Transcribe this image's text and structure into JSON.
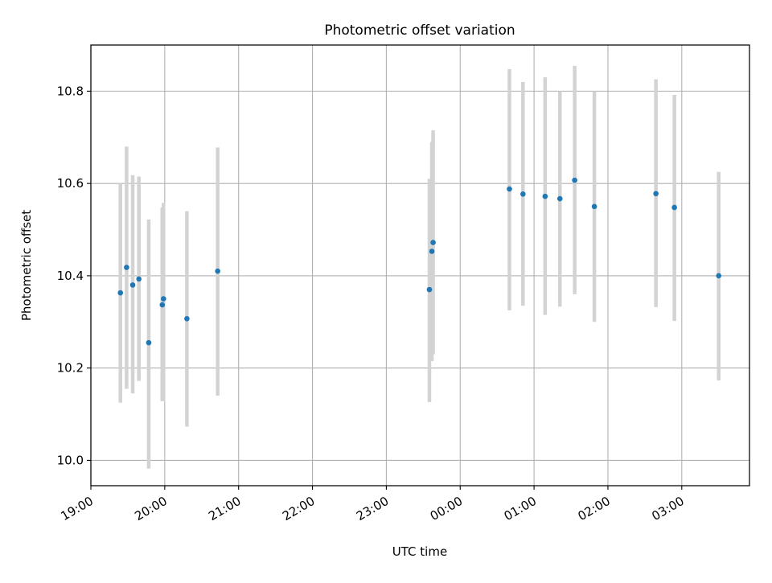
{
  "chart_data": {
    "type": "scatter",
    "title": "Photometric offset variation",
    "xlabel": "UTC time",
    "ylabel": "Photometric offset",
    "x_unit": "UTC time, evening 19:00 through early morning 03:45 of the next day",
    "xlim": [
      "19:00",
      "03:55"
    ],
    "ylim": [
      9.945,
      10.9
    ],
    "xticks": [
      "19:00",
      "20:00",
      "21:00",
      "22:00",
      "23:00",
      "00:00",
      "01:00",
      "02:00",
      "03:00"
    ],
    "yticks": [
      "10.0",
      "10.2",
      "10.4",
      "10.6",
      "10.8"
    ],
    "grid": true,
    "legend": "none",
    "colors": {
      "point": "#1f77b4",
      "errorbar": "#d3d3d3",
      "grid": "#b0b0b0"
    },
    "series": [
      {
        "points": [
          {
            "x": "19:24",
            "y": 10.363,
            "ylo": 10.125,
            "yhi": 10.6
          },
          {
            "x": "19:29",
            "y": 10.418,
            "ylo": 10.155,
            "yhi": 10.68
          },
          {
            "x": "19:34",
            "y": 10.38,
            "ylo": 10.145,
            "yhi": 10.618
          },
          {
            "x": "19:39",
            "y": 10.393,
            "ylo": 10.172,
            "yhi": 10.615
          },
          {
            "x": "19:47",
            "y": 10.255,
            "ylo": 9.982,
            "yhi": 10.522
          },
          {
            "x": "19:58",
            "y": 10.337,
            "ylo": 10.128,
            "yhi": 10.548
          },
          {
            "x": "19:59",
            "y": 10.35,
            "ylo": 10.128,
            "yhi": 10.558
          },
          {
            "x": "20:18",
            "y": 10.307,
            "ylo": 10.073,
            "yhi": 10.54
          },
          {
            "x": "20:43",
            "y": 10.41,
            "ylo": 10.14,
            "yhi": 10.678
          },
          {
            "x": "23:35",
            "y": 10.37,
            "ylo": 10.126,
            "yhi": 10.61
          },
          {
            "x": "23:37",
            "y": 10.453,
            "ylo": 10.215,
            "yhi": 10.69
          },
          {
            "x": "23:38",
            "y": 10.472,
            "ylo": 10.23,
            "yhi": 10.715
          },
          {
            "x": "00:40",
            "y": 10.588,
            "ylo": 10.325,
            "yhi": 10.848
          },
          {
            "x": "00:51",
            "y": 10.577,
            "ylo": 10.335,
            "yhi": 10.82
          },
          {
            "x": "01:09",
            "y": 10.572,
            "ylo": 10.315,
            "yhi": 10.83
          },
          {
            "x": "01:21",
            "y": 10.567,
            "ylo": 10.333,
            "yhi": 10.8
          },
          {
            "x": "01:33",
            "y": 10.607,
            "ylo": 10.36,
            "yhi": 10.855
          },
          {
            "x": "01:49",
            "y": 10.55,
            "ylo": 10.3,
            "yhi": 10.8
          },
          {
            "x": "02:39",
            "y": 10.578,
            "ylo": 10.332,
            "yhi": 10.826
          },
          {
            "x": "02:54",
            "y": 10.548,
            "ylo": 10.302,
            "yhi": 10.792
          },
          {
            "x": "03:30",
            "y": 10.4,
            "ylo": 10.173,
            "yhi": 10.625
          }
        ]
      }
    ]
  }
}
